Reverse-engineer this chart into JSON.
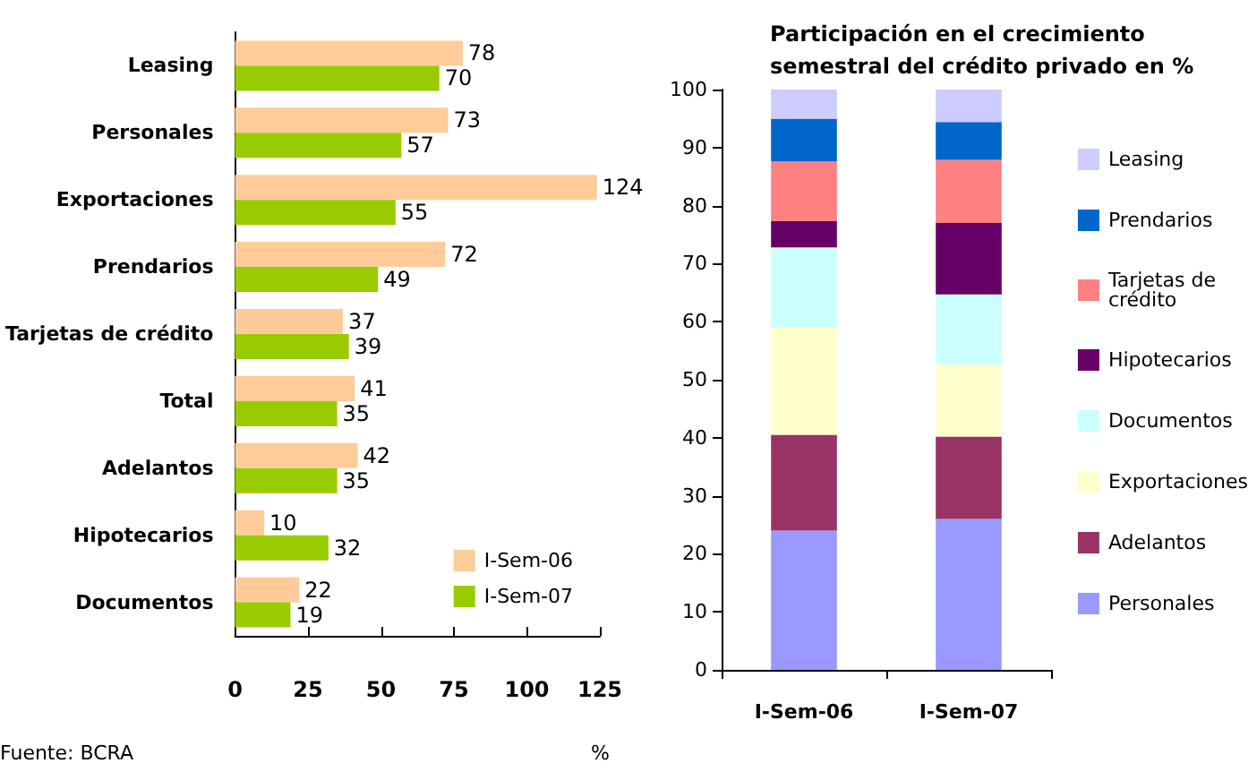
{
  "chart_data": [
    {
      "type": "bar",
      "orientation": "horizontal",
      "categories": [
        "Leasing",
        "Personales",
        "Exportaciones",
        "Prendarios",
        "Tarjetas de crédito",
        "Total",
        "Adelantos",
        "Hipotecarios",
        "Documentos"
      ],
      "series": [
        {
          "name": "I-Sem-06",
          "color": "#ffcc99",
          "values": [
            78,
            73,
            124,
            72,
            37,
            41,
            42,
            10,
            22
          ]
        },
        {
          "name": "I-Sem-07",
          "color": "#99cc00",
          "values": [
            70,
            57,
            55,
            49,
            39,
            35,
            35,
            32,
            19
          ]
        }
      ],
      "xlim": [
        0,
        125
      ],
      "xticks": [
        0,
        25,
        50,
        75,
        100,
        125
      ],
      "xlabel": "%",
      "data_labels": true,
      "legend": "bottom right",
      "grid": false,
      "annotations": [
        "Fuente: BCRA"
      ]
    },
    {
      "type": "bar",
      "stacked": true,
      "title": "Participación en el crecimiento\nsemestral del crédito privado en %",
      "categories": [
        "I-Sem-06",
        "I-Sem-07"
      ],
      "series": [
        {
          "name": "Personales",
          "color": "#9999ff",
          "values": [
            24,
            26
          ]
        },
        {
          "name": "Adelantos",
          "color": "#993366",
          "values": [
            16.5,
            14.2
          ]
        },
        {
          "name": "Exportaciones",
          "color": "#ffffcc",
          "values": [
            18.5,
            12.4
          ]
        },
        {
          "name": "Documentos",
          "color": "#ccffff",
          "values": [
            13.8,
            12.1
          ]
        },
        {
          "name": "Hipotecarios",
          "color": "#660066",
          "values": [
            4.5,
            12.3
          ]
        },
        {
          "name": "Tarjetas de crédito",
          "color": "#ff8080",
          "values": [
            10.3,
            10.9
          ]
        },
        {
          "name": "Prendarios",
          "color": "#0066cc",
          "values": [
            7.4,
            6.5
          ]
        },
        {
          "name": "Leasing",
          "color": "#ccccff",
          "values": [
            5,
            5.6
          ]
        }
      ],
      "ylim": [
        0,
        100
      ],
      "yticks": [
        0,
        10,
        20,
        30,
        40,
        50,
        60,
        70,
        80,
        90,
        100
      ],
      "legend": "right",
      "grid": false
    }
  ]
}
